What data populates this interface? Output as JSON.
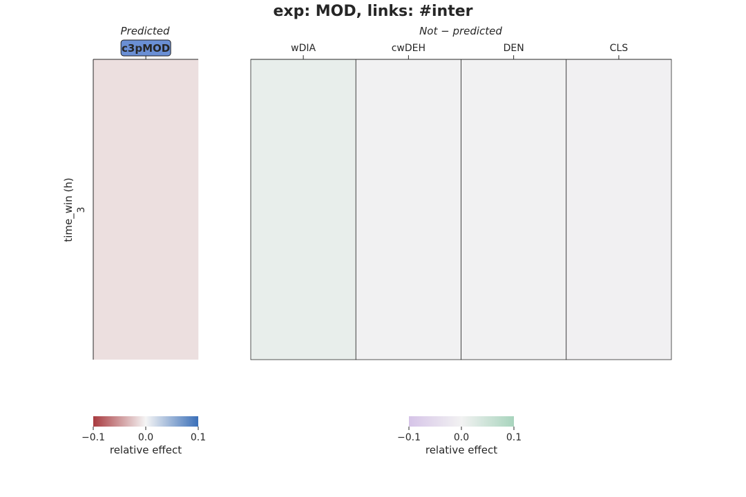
{
  "chart_data": {
    "type": "heatmap",
    "title": "exp: MOD, links: #inter",
    "ylabel": "time_win (h)",
    "rows": [
      "3"
    ],
    "panels": [
      {
        "name": "predicted",
        "title": "Predicted",
        "columns": [
          "c3pMOD"
        ],
        "highlighted_column": "c3pMOD",
        "values": [
          [
            -0.012
          ]
        ],
        "colormap": {
          "low": "#a83a3f",
          "mid": "#f5f5f5",
          "high": "#3a6fb8"
        },
        "clim": [
          -0.1,
          0.1
        ],
        "colorbar": {
          "ticks": [
            "−0.1",
            "0.0",
            "0.1"
          ],
          "label": "relative effect"
        }
      },
      {
        "name": "not-predicted",
        "title": "Not − predicted",
        "columns": [
          "wDIA",
          "cwDEH",
          "DEN",
          "CLS"
        ],
        "values": [
          [
            0.014,
            -0.002,
            -0.002,
            -0.004
          ]
        ],
        "colormap": {
          "low": "#d6c4e8",
          "mid": "#f2f2f2",
          "high": "#a8d4bd"
        },
        "clim": [
          -0.1,
          0.1
        ],
        "colorbar": {
          "ticks": [
            "−0.1",
            "0.0",
            "0.1"
          ],
          "label": "relative effect"
        }
      }
    ],
    "colors": {
      "predicted_cell": "#f5e5e4",
      "wDIA_cell": "#d7e6e1",
      "cwDEH_cell": "#eae9f0",
      "DEN_cell": "#eae9f0",
      "CLS_cell": "#e9e6ee",
      "badge_fill": "#6a8fd4"
    }
  }
}
